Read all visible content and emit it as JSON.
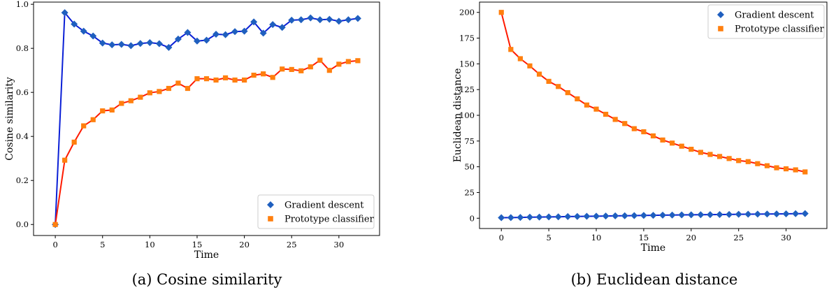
{
  "colors": {
    "gd_marker": "#1f5fbf",
    "gd_line": "#0a1fd6",
    "pc_marker": "#ff7f0e",
    "pc_line": "#ff1a00"
  },
  "chart_data": [
    {
      "type": "line",
      "caption": "(a) Cosine similarity",
      "xlabel": "Time",
      "ylabel": "Cosine similarity",
      "xlim": [
        -2.3,
        34.3
      ],
      "ylim": [
        -0.05,
        1.01
      ],
      "xticks": [
        "0",
        "5",
        "10",
        "15",
        "20",
        "25",
        "30"
      ],
      "yticks": [
        "0.0",
        "0.2",
        "0.4",
        "0.6",
        "0.8",
        "1.0"
      ],
      "grid": false,
      "legend": "lower-right",
      "x": [
        0,
        1,
        2,
        3,
        4,
        5,
        6,
        7,
        8,
        9,
        10,
        11,
        12,
        13,
        14,
        15,
        16,
        17,
        18,
        19,
        20,
        21,
        22,
        23,
        24,
        25,
        26,
        27,
        28,
        29,
        30,
        31,
        32
      ],
      "series": [
        {
          "name": "Gradient descent",
          "marker": "diamond",
          "values": [
            0.0,
            0.962,
            0.91,
            0.878,
            0.856,
            0.824,
            0.816,
            0.818,
            0.812,
            0.822,
            0.826,
            0.821,
            0.804,
            0.842,
            0.872,
            0.833,
            0.837,
            0.864,
            0.862,
            0.876,
            0.878,
            0.92,
            0.869,
            0.908,
            0.895,
            0.928,
            0.93,
            0.938,
            0.93,
            0.932,
            0.923,
            0.93,
            0.936
          ]
        },
        {
          "name": "Prototype classifier",
          "marker": "square",
          "values": [
            0.0,
            0.292,
            0.374,
            0.448,
            0.476,
            0.516,
            0.52,
            0.55,
            0.562,
            0.578,
            0.598,
            0.604,
            0.618,
            0.642,
            0.618,
            0.662,
            0.662,
            0.656,
            0.666,
            0.656,
            0.656,
            0.678,
            0.684,
            0.668,
            0.706,
            0.704,
            0.698,
            0.716,
            0.746,
            0.7,
            0.728,
            0.74,
            0.744
          ]
        }
      ]
    },
    {
      "type": "line",
      "caption": "(b) Euclidean distance",
      "xlabel": "Time",
      "ylabel": "Euclidean distance",
      "xlim": [
        -2.3,
        34.3
      ],
      "ylim": [
        -10,
        210
      ],
      "xticks": [
        "0",
        "5",
        "10",
        "15",
        "20",
        "25",
        "30"
      ],
      "yticks": [
        "0",
        "25",
        "50",
        "75",
        "100",
        "125",
        "150",
        "175",
        "200"
      ],
      "grid": false,
      "legend": "upper-right",
      "x": [
        0,
        1,
        2,
        3,
        4,
        5,
        6,
        7,
        8,
        9,
        10,
        11,
        12,
        13,
        14,
        15,
        16,
        17,
        18,
        19,
        20,
        21,
        22,
        23,
        24,
        25,
        26,
        27,
        28,
        29,
        30,
        31,
        32
      ],
      "series": [
        {
          "name": "Gradient descent",
          "marker": "diamond",
          "values": [
            0.5,
            0.6,
            0.8,
            1.0,
            1.1,
            1.3,
            1.4,
            1.6,
            1.7,
            1.9,
            2.0,
            2.1,
            2.3,
            2.4,
            2.6,
            2.7,
            2.8,
            3.0,
            3.1,
            3.2,
            3.3,
            3.4,
            3.5,
            3.6,
            3.7,
            3.8,
            3.9,
            4.0,
            4.1,
            4.2,
            4.3,
            4.4,
            4.5
          ]
        },
        {
          "name": "Prototype classifier",
          "marker": "square",
          "values": [
            200,
            164,
            155,
            148,
            140,
            133,
            128,
            122,
            116,
            110,
            106,
            101,
            96,
            92,
            87,
            84,
            80,
            76,
            73,
            70,
            67,
            64,
            62,
            60,
            58,
            56,
            55,
            53,
            51,
            49,
            48,
            47,
            45
          ]
        }
      ]
    }
  ]
}
